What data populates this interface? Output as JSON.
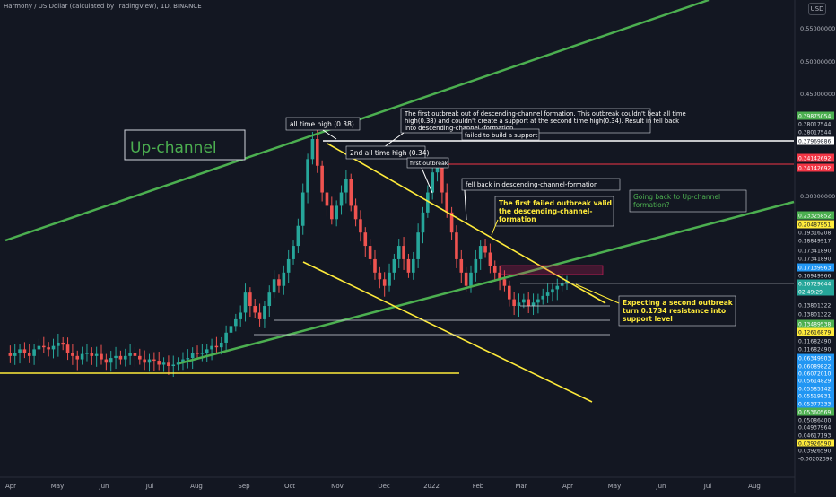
{
  "header": {
    "title": "Harmony / US Dollar (calculated by TradingView), 1D, BINANCE",
    "currency": "USD"
  },
  "chart_data": {
    "type": "candlestick",
    "x_ticks": [
      "Apr",
      "May",
      "Jun",
      "Jul",
      "Aug",
      "Sep",
      "Oct",
      "Nov",
      "Dec",
      "2022",
      "Feb",
      "Mar",
      "Apr",
      "May",
      "Jun",
      "Jul",
      "Aug"
    ],
    "y_ticks": [
      "0.55000000",
      "0.50000000",
      "0.45000000",
      "0.30000000"
    ],
    "price_labels": [
      {
        "text": "0.39875054",
        "color": "#4caf50",
        "text_color": "#ffffff"
      },
      {
        "text": "0.38017544",
        "color": "#131722",
        "text_color": "#d1d4dc"
      },
      {
        "text": "0.38017544",
        "color": "#131722",
        "text_color": "#d1d4dc"
      },
      {
        "text": "0.37969886",
        "color": "#ffffff",
        "text_color": "#131722"
      },
      {
        "text": "0.34142692",
        "color": "#f23645",
        "text_color": "#ffffff"
      },
      {
        "text": "0.34142692",
        "color": "#f23645",
        "text_color": "#ffffff"
      },
      {
        "text": "0.23325852",
        "color": "#4caf50",
        "text_color": "#ffffff"
      },
      {
        "text": "0.20487951",
        "color": "#ffeb3b",
        "text_color": "#131722"
      },
      {
        "text": "0.19316208",
        "color": "#131722",
        "text_color": "#d1d4dc"
      },
      {
        "text": "0.18849917",
        "color": "#131722",
        "text_color": "#d1d4dc"
      },
      {
        "text": "0.17341890",
        "color": "#131722",
        "text_color": "#d1d4dc"
      },
      {
        "text": "0.17341890",
        "color": "#131722",
        "text_color": "#d1d4dc"
      },
      {
        "text": "0.17139963",
        "color": "#2196f3",
        "text_color": "#ffffff"
      },
      {
        "text": "0.16949966",
        "color": "#131722",
        "text_color": "#d1d4dc"
      },
      {
        "text": "0.16729644",
        "color": "#26a69a",
        "text_color": "#ffffff"
      },
      {
        "text": "02:49:29",
        "color": "#26a69a",
        "text_color": "#ffffff"
      },
      {
        "text": "0.13801322",
        "color": "#131722",
        "text_color": "#d1d4dc"
      },
      {
        "text": "0.13801322",
        "color": "#131722",
        "text_color": "#d1d4dc"
      },
      {
        "text": "0.13489538",
        "color": "#4caf50",
        "text_color": "#ffffff"
      },
      {
        "text": "0.12616879",
        "color": "#ffeb3b",
        "text_color": "#131722"
      },
      {
        "text": "0.11682490",
        "color": "#131722",
        "text_color": "#d1d4dc"
      },
      {
        "text": "0.11682490",
        "color": "#131722",
        "text_color": "#d1d4dc"
      },
      {
        "text": "0.06349903",
        "color": "#2196f3",
        "text_color": "#ffffff"
      },
      {
        "text": "0.06089822",
        "color": "#2196f3",
        "text_color": "#ffffff"
      },
      {
        "text": "0.06072010",
        "color": "#2196f3",
        "text_color": "#ffffff"
      },
      {
        "text": "0.05614829",
        "color": "#2196f3",
        "text_color": "#ffffff"
      },
      {
        "text": "0.05585142",
        "color": "#2196f3",
        "text_color": "#ffffff"
      },
      {
        "text": "0.05519831",
        "color": "#2196f3",
        "text_color": "#ffffff"
      },
      {
        "text": "0.05377333",
        "color": "#2196f3",
        "text_color": "#ffffff"
      },
      {
        "text": "0.05360569",
        "color": "#4caf50",
        "text_color": "#ffffff"
      },
      {
        "text": "0.05086400",
        "color": "#131722",
        "text_color": "#d1d4dc"
      },
      {
        "text": "0.04937964",
        "color": "#131722",
        "text_color": "#d1d4dc"
      },
      {
        "text": "0.04617193",
        "color": "#131722",
        "text_color": "#d1d4dc"
      },
      {
        "text": "0.03926590",
        "color": "#ffeb3b",
        "text_color": "#131722"
      },
      {
        "text": "0.03926590",
        "color": "#131722",
        "text_color": "#d1d4dc"
      },
      {
        "text": "-0.00202398",
        "color": "#131722",
        "text_color": "#d1d4dc"
      }
    ],
    "annotations": {
      "upchannel_label": "Up-channel",
      "ath_label": "all time high (0.38)",
      "first_outbreak_note": "The first outbreak out of descending-channel formation. This outbreak couldn't beat all time high(0.38) and couldn't create a support at the second time high(0.34). Result in fell back into descending-channel -formation",
      "failed_support": "failed to build a support",
      "second_ath": "2nd all time high (0.34)",
      "first_outbreak": "first outbreak",
      "fell_back": "fell back in descending-channel-formation",
      "first_failed": "The first failed outbreak valid the descending-channel-formation",
      "going_back": "Going back to Up-channel formation?",
      "expecting": "Expecting a second outbreak turn 0.1734 resistance into support level"
    },
    "colors": {
      "background": "#131722",
      "up_candle": "#26a69a",
      "down_candle": "#ef5350",
      "upchannel": "#4caf50",
      "descending_channel": "#ffeb3b",
      "ath_line": "#ffffff",
      "second_ath_line": "#f23645"
    },
    "candles": [
      0.06,
      0.055,
      0.06,
      0.065,
      0.06,
      0.055,
      0.065,
      0.07,
      0.068,
      0.065,
      0.07,
      0.075,
      0.072,
      0.06,
      0.055,
      0.05,
      0.058,
      0.06,
      0.055,
      0.058,
      0.05,
      0.045,
      0.052,
      0.055,
      0.05,
      0.055,
      0.06,
      0.055,
      0.05,
      0.045,
      0.05,
      0.048,
      0.042,
      0.045,
      0.04,
      0.042,
      0.045,
      0.05,
      0.052,
      0.06,
      0.058,
      0.06,
      0.065,
      0.07,
      0.068,
      0.075,
      0.09,
      0.1,
      0.11,
      0.12,
      0.15,
      0.13,
      0.12,
      0.11,
      0.13,
      0.15,
      0.17,
      0.16,
      0.18,
      0.2,
      0.22,
      0.25,
      0.3,
      0.35,
      0.38,
      0.34,
      0.3,
      0.28,
      0.26,
      0.28,
      0.3,
      0.32,
      0.28,
      0.26,
      0.24,
      0.22,
      0.2,
      0.18,
      0.17,
      0.16,
      0.18,
      0.2,
      0.22,
      0.2,
      0.18,
      0.2,
      0.24,
      0.27,
      0.3,
      0.33,
      0.34,
      0.3,
      0.27,
      0.24,
      0.2,
      0.18,
      0.16,
      0.18,
      0.2,
      0.22,
      0.21,
      0.19,
      0.18,
      0.17,
      0.16,
      0.14,
      0.13,
      0.135,
      0.14,
      0.13,
      0.135,
      0.14,
      0.145,
      0.15,
      0.155,
      0.16,
      0.165,
      0.167
    ]
  }
}
